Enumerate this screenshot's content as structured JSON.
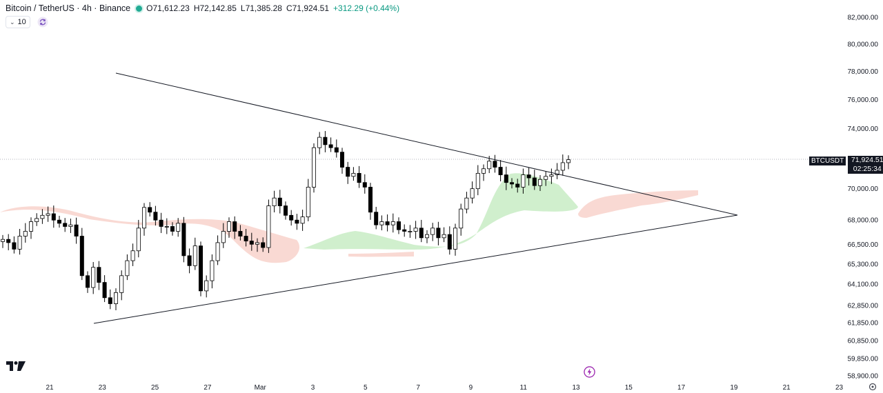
{
  "header": {
    "title": "Bitcoin / TetherUS · 4h · Binance",
    "open": "O71,612.23",
    "high": "H72,142.85",
    "low": "L71,385.28",
    "close": "C71,924.51",
    "change": "+312.29 (+0.44%)",
    "status_color": "#22ab94"
  },
  "indicator": {
    "label": "10",
    "collapse_icon": "chevron-down-icon",
    "reload_icon": "reload-icon"
  },
  "price_badge": {
    "symbol": "BTCUSDT",
    "price": "71,924.51",
    "countdown": "02:25:34"
  },
  "colors": {
    "up": "#ffffff",
    "down": "#000000",
    "cloud_bull": "#c8ecc4",
    "cloud_bear": "#f8d0c8",
    "trendline": "#131722",
    "axis_text": "#131722"
  },
  "chart_data": {
    "type": "candlestick",
    "symbol": "BTCUSDT",
    "timeframe": "4h",
    "y_axis_labels": [
      "82,000.00",
      "80,000.00",
      "78,000.00",
      "76,000.00",
      "74,000.00",
      "70,000.00",
      "68,000.00",
      "66,500.00",
      "65,300.00",
      "64,100.00",
      "62,850.00",
      "61,850.00",
      "60,850.00",
      "59,850.00",
      "58,900.00"
    ],
    "y_axis_scale": "log",
    "x_axis_labels": [
      "21",
      "23",
      "25",
      "27",
      "Mar",
      "3",
      "5",
      "7",
      "9",
      "11",
      "13",
      "15",
      "17",
      "19",
      "21",
      "23"
    ],
    "current_price": 71924.51,
    "candles_close_path": [
      66800,
      66600,
      66200,
      67000,
      67300,
      67900,
      68100,
      68300,
      68400,
      68000,
      67800,
      67600,
      67700,
      67000,
      64600,
      63900,
      65100,
      64200,
      63300,
      62950,
      63600,
      64600,
      65500,
      66100,
      67500,
      68800,
      68500,
      68000,
      67600,
      67600,
      67300,
      67800,
      65800,
      65200,
      66400,
      63700,
      64300,
      65500,
      66600,
      67300,
      67900,
      67300,
      67000,
      66700,
      66500,
      66600,
      66300,
      68900,
      69400,
      68900,
      68300,
      68000,
      67800,
      68200,
      70100,
      72700,
      73400,
      72900,
      72700,
      72400,
      71400,
      70800,
      71000,
      70400,
      70100,
      68500,
      67700,
      67900,
      67700,
      67900,
      67400,
      67300,
      67300,
      67500,
      66900,
      67100,
      67500,
      66900,
      67100,
      66200,
      67500,
      68700,
      69400,
      70000,
      71000,
      71300,
      71800,
      71400,
      70900,
      70400,
      70300,
      70100,
      70900,
      70700,
      70200,
      70600,
      70800,
      70900,
      71200,
      71700,
      71900
    ]
  }
}
